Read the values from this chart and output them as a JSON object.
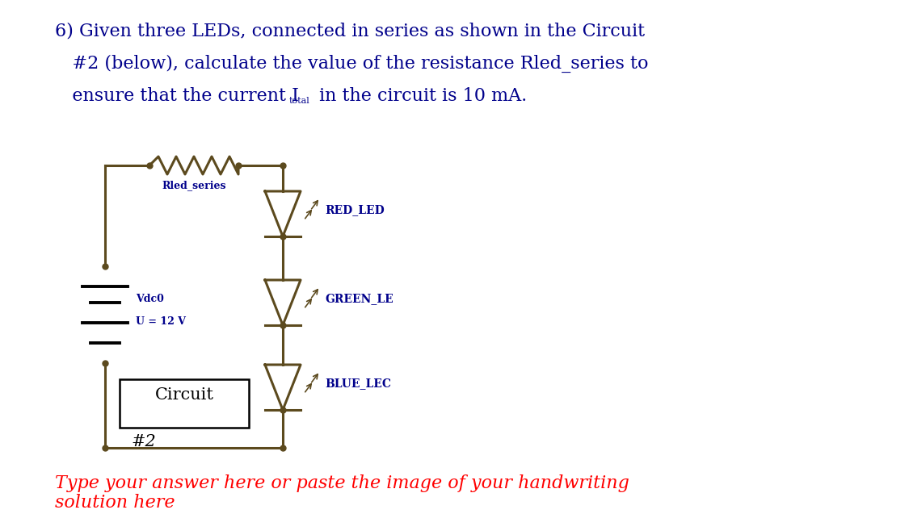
{
  "bg_color": "#ffffff",
  "text_color_blue": "#00008B",
  "text_color_red": "#FF0000",
  "circuit_color": "#5C4A1E",
  "question_line1": "6) Given three LEDs, connected in series as shown in the Circuit",
  "question_line2": "   #2 (below), calculate the value of the resistance Rled_series to",
  "question_line3_pre": "   ensure that the current I",
  "question_line3_sub": "total",
  "question_line3_post": " in the circuit is 10 mA.",
  "answer_line1": "Type your answer here or paste the image of your handwriting",
  "answer_line2": "solution here",
  "label_rled": "Rled_series",
  "label_vdc": "Vdc0",
  "label_u": "U = 12 V",
  "label_red": "RED_LED",
  "label_green": "GREEN_LE",
  "label_blue": "BLUE_LEC",
  "label_circuit": "Circuit",
  "label_num": "#2",
  "font_size_q": 16,
  "font_size_a": 16,
  "font_size_label": 9,
  "font_size_circuit": 15
}
